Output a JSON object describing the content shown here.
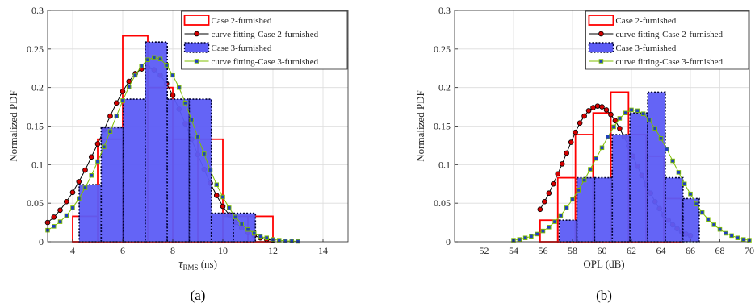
{
  "chart_data": [
    {
      "type": "bar",
      "panel_label": "(a)",
      "xlabel_symbol": "τ",
      "xlabel_sub": "RMS",
      "xlabel_unit": " (ns)",
      "ylabel": "Normalized PDF",
      "xlim": [
        3,
        15
      ],
      "ylim": [
        0,
        0.3
      ],
      "xticks": [
        "4",
        "6",
        "8",
        "10",
        "12",
        "14"
      ],
      "xtick_values": [
        4,
        6,
        8,
        10,
        12,
        14
      ],
      "yticks": [
        "0",
        "0.05",
        "0.1",
        "0.15",
        "0.2",
        "0.25",
        "0.3"
      ],
      "ytick_values": [
        0,
        0.05,
        0.1,
        0.15,
        0.2,
        0.25,
        0.3
      ],
      "grid": true,
      "legend_position": "top-right",
      "legend": [
        "Case 2-furnished",
        "curve fitting-Case 2-furnished",
        "Case 3-furnished",
        "curve fitting-Case 3-furnished"
      ],
      "series": [
        {
          "name": "Case 2-furnished",
          "kind": "hist-outline",
          "color": "#ff0000",
          "edges": [
            4,
            5,
            6,
            7,
            8,
            9,
            10,
            11,
            12
          ],
          "values": [
            0.033,
            0.133,
            0.267,
            0.2,
            0.133,
            0.133,
            0.033,
            0.033
          ]
        },
        {
          "name": "curve fitting-Case 2-furnished",
          "kind": "curve",
          "color": "#000000",
          "marker": "circle",
          "marker_fill": "#d40000",
          "x": [
            3,
            3.25,
            3.5,
            3.75,
            4,
            4.25,
            4.5,
            4.75,
            5,
            5.25,
            5.5,
            5.75,
            6,
            6.25,
            6.5,
            6.75,
            7,
            7.25,
            7.5,
            7.75,
            8,
            8.25,
            8.5,
            8.75,
            9,
            9.25,
            9.5,
            9.75,
            10,
            10.25,
            10.5,
            10.75,
            11,
            11.25,
            11.5,
            11.75,
            12
          ],
          "y": [
            0.025,
            0.032,
            0.041,
            0.052,
            0.064,
            0.078,
            0.093,
            0.11,
            0.127,
            0.145,
            0.163,
            0.18,
            0.195,
            0.208,
            0.218,
            0.224,
            0.226,
            0.223,
            0.216,
            0.205,
            0.19,
            0.172,
            0.153,
            0.133,
            0.113,
            0.094,
            0.076,
            0.06,
            0.046,
            0.035,
            0.025,
            0.018,
            0.012,
            0.008,
            0.005,
            0.003,
            0.002
          ]
        },
        {
          "name": "Case 3-furnished",
          "kind": "hist-filled",
          "color": "#5c5cf5",
          "edges": [
            4.26,
            5.14,
            6.02,
            6.9,
            7.78,
            8.66,
            9.54,
            10.42,
            11.3
          ],
          "values": [
            0.074,
            0.148,
            0.185,
            0.259,
            0.185,
            0.185,
            0.037,
            0.037
          ]
        },
        {
          "name": "curve fitting-Case 3-furnished",
          "kind": "curve",
          "color": "#7fbf00",
          "marker": "square",
          "marker_fill": "#1f3fbf",
          "x": [
            3,
            3.25,
            3.5,
            3.75,
            4,
            4.25,
            4.5,
            4.75,
            5,
            5.25,
            5.5,
            5.75,
            6,
            6.25,
            6.5,
            6.75,
            7,
            7.25,
            7.5,
            7.75,
            8,
            8.25,
            8.5,
            8.75,
            9,
            9.25,
            9.5,
            9.75,
            10,
            10.25,
            10.5,
            10.75,
            11,
            11.25,
            11.5,
            11.75,
            12,
            12.25,
            12.5,
            12.75,
            13
          ],
          "y": [
            0.015,
            0.02,
            0.026,
            0.034,
            0.044,
            0.056,
            0.07,
            0.086,
            0.104,
            0.123,
            0.143,
            0.163,
            0.183,
            0.201,
            0.216,
            0.228,
            0.236,
            0.239,
            0.237,
            0.229,
            0.216,
            0.2,
            0.18,
            0.158,
            0.136,
            0.114,
            0.093,
            0.074,
            0.058,
            0.044,
            0.032,
            0.023,
            0.016,
            0.011,
            0.007,
            0.005,
            0.003,
            0.002,
            0.001,
            0.001,
            0.0005
          ]
        }
      ]
    },
    {
      "type": "bar",
      "panel_label": "(b)",
      "xlabel": "OPL (dB)",
      "ylabel": "Normalized PDF",
      "xlim": [
        50,
        70
      ],
      "ylim": [
        0,
        0.3
      ],
      "xticks": [
        "52",
        "54",
        "56",
        "58",
        "60",
        "62",
        "64",
        "66",
        "68",
        "70"
      ],
      "xtick_values": [
        52,
        54,
        56,
        58,
        60,
        62,
        64,
        66,
        68,
        70
      ],
      "yticks": [
        "0",
        "0.05",
        "0.1",
        "0.15",
        "0.2",
        "0.25",
        "0.3"
      ],
      "ytick_values": [
        0,
        0.05,
        0.1,
        0.15,
        0.2,
        0.25,
        0.3
      ],
      "grid": true,
      "legend_position": "top-right",
      "legend": [
        "Case 2-furnished",
        "curve fitting-Case 2-furnished",
        "Case 3-furnished",
        "curve fitting-Case 3-furnished"
      ],
      "series": [
        {
          "name": "Case 2-furnished",
          "kind": "hist-outline",
          "color": "#ff0000",
          "edges": [
            55.8,
            57.0,
            58.2,
            59.4,
            60.6,
            61.8,
            63.0,
            64.2,
            65.4
          ],
          "values": [
            0.028,
            0.083,
            0.139,
            0.167,
            0.194,
            0.139,
            0.111,
            0.056
          ]
        },
        {
          "name": "curve fitting-Case 2-furnished",
          "kind": "curve",
          "color": "#000000",
          "marker": "circle",
          "marker_fill": "#d40000",
          "x": [
            55.8,
            56.1,
            56.4,
            56.7,
            57.0,
            57.3,
            57.6,
            57.9,
            58.2,
            58.5,
            58.8,
            59.1,
            59.4,
            59.7,
            60.0,
            60.3,
            60.6,
            60.9,
            61.2,
            61.5,
            61.8,
            62.1,
            62.4,
            62.7,
            63.0,
            63.3,
            63.6,
            63.9,
            64.2,
            64.5,
            64.8,
            65.1,
            65.4,
            65.7,
            66.0
          ],
          "y": [
            0.042,
            0.052,
            0.063,
            0.075,
            0.088,
            0.101,
            0.115,
            0.129,
            0.142,
            0.154,
            0.163,
            0.17,
            0.174,
            0.176,
            0.175,
            0.171,
            0.165,
            0.157,
            0.147,
            0.136,
            0.124,
            0.111,
            0.098,
            0.086,
            0.074,
            0.063,
            0.052,
            0.043,
            0.035,
            0.028,
            0.022,
            0.017,
            0.013,
            0.01,
            0.008
          ]
        },
        {
          "name": "Case 3-furnished",
          "kind": "hist-filled",
          "color": "#5c5cf5",
          "edges": [
            57.1,
            58.3,
            59.5,
            60.7,
            61.9,
            63.1,
            64.3,
            65.5,
            66.6
          ],
          "values": [
            0.028,
            0.083,
            0.083,
            0.139,
            0.167,
            0.194,
            0.083,
            0.056
          ]
        },
        {
          "name": "curve fitting-Case 3-furnished",
          "kind": "curve",
          "color": "#7fbf00",
          "marker": "square",
          "marker_fill": "#1f3fbf",
          "x": [
            54,
            54.4,
            54.8,
            55.2,
            55.6,
            56,
            56.4,
            56.8,
            57.2,
            57.6,
            58,
            58.4,
            58.8,
            59.2,
            59.6,
            60,
            60.4,
            60.8,
            61.2,
            61.6,
            62,
            62.4,
            62.8,
            63.2,
            63.6,
            64,
            64.4,
            64.8,
            65.2,
            65.6,
            66,
            66.4,
            66.8,
            67.2,
            67.6,
            68,
            68.4,
            68.8,
            69.2,
            69.6,
            70
          ],
          "y": [
            0.002,
            0.003,
            0.005,
            0.007,
            0.01,
            0.014,
            0.019,
            0.026,
            0.034,
            0.044,
            0.055,
            0.067,
            0.08,
            0.094,
            0.108,
            0.122,
            0.136,
            0.149,
            0.16,
            0.167,
            0.171,
            0.17,
            0.166,
            0.158,
            0.147,
            0.134,
            0.12,
            0.105,
            0.09,
            0.075,
            0.062,
            0.049,
            0.038,
            0.029,
            0.022,
            0.016,
            0.011,
            0.008,
            0.005,
            0.003,
            0.002
          ]
        }
      ]
    }
  ]
}
